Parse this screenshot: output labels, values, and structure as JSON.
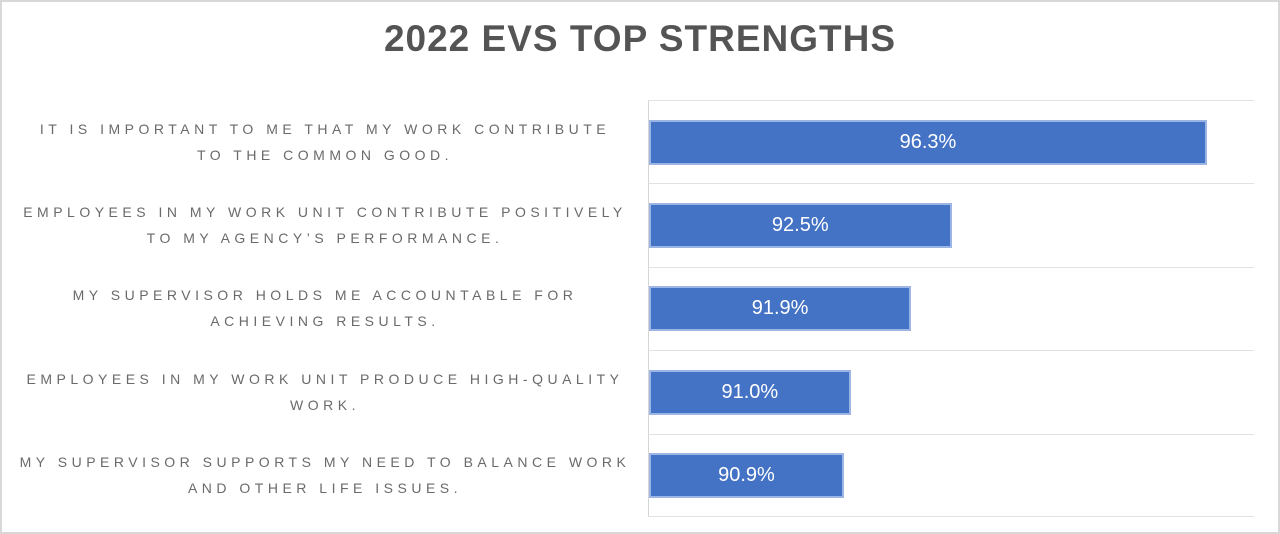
{
  "title": "2022 EVS TOP STRENGTHS",
  "chart_data": {
    "type": "bar",
    "orientation": "horizontal",
    "title": "2022 EVS TOP STRENGTHS",
    "categories": [
      "IT IS IMPORTANT TO ME THAT MY WORK CONTRIBUTE TO THE COMMON GOOD.",
      "EMPLOYEES IN MY WORK UNIT CONTRIBUTE POSITIVELY TO MY AGENCY’S PERFORMANCE.",
      "MY SUPERVISOR HOLDS ME ACCOUNTABLE FOR ACHIEVING RESULTS.",
      "EMPLOYEES IN MY WORK UNIT PRODUCE HIGH-QUALITY WORK.",
      "MY SUPERVISOR SUPPORTS MY NEED TO BALANCE WORK AND OTHER LIFE ISSUES."
    ],
    "category_lines": [
      [
        "IT IS IMPORTANT TO ME THAT MY WORK CONTRIBUTE",
        "TO THE COMMON GOOD."
      ],
      [
        "EMPLOYEES IN MY WORK UNIT CONTRIBUTE POSITIVELY",
        "TO MY AGENCY’S PERFORMANCE."
      ],
      [
        "MY SUPERVISOR HOLDS ME ACCOUNTABLE FOR",
        "ACHIEVING RESULTS."
      ],
      [
        "EMPLOYEES IN MY WORK UNIT PRODUCE HIGH-QUALITY",
        "WORK."
      ],
      [
        "MY SUPERVISOR SUPPORTS MY NEED TO BALANCE WORK",
        "AND OTHER LIFE ISSUES."
      ]
    ],
    "values": [
      96.3,
      92.5,
      91.9,
      91.0,
      90.9
    ],
    "data_labels": [
      "96.3%",
      "92.5%",
      "91.9%",
      "91.0%",
      "90.9%"
    ],
    "xlim": [
      88,
      97
    ],
    "xlabel": "",
    "ylabel": "",
    "legend": "none",
    "grid": "category-separator-lines-only"
  },
  "colors": {
    "bar_fill": "#4472C4",
    "bar_border": "#9DB5E5",
    "data_label_text": "#FFFFFF",
    "title_text": "#545454",
    "category_text": "#6A6A6A",
    "grid_line": "#E2E2E2",
    "axis_line": "#D6D6D6",
    "chart_border": "#D8D8D8",
    "background": "#FFFFFF"
  }
}
